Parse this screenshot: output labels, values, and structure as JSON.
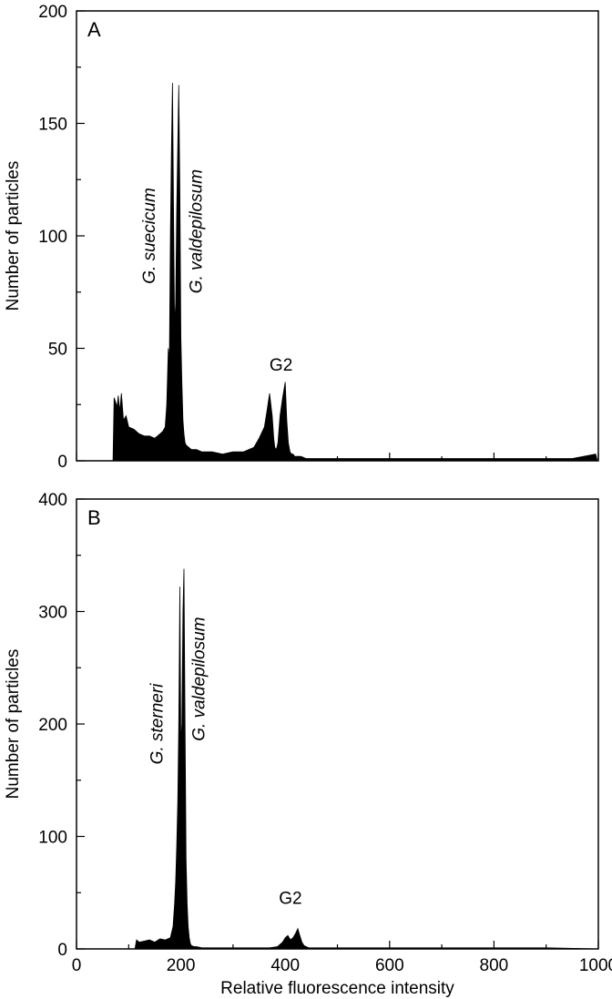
{
  "chart_data": [
    {
      "type": "area",
      "panel_label": "A",
      "xlabel": "",
      "ylabel": "Number of particles",
      "xlim": [
        0,
        1000
      ],
      "ylim": [
        0,
        200
      ],
      "xticks": [
        0,
        200,
        400,
        600,
        800,
        1000
      ],
      "yticks": [
        0,
        50,
        100,
        150,
        200
      ],
      "ytick_labels": [
        "0",
        "50",
        "100",
        "150",
        "200"
      ],
      "show_xtick_labels": false,
      "grid": false,
      "color": "#000000",
      "series": [
        {
          "x": [
            70,
            72,
            75,
            78,
            80,
            83,
            86,
            90,
            95,
            100,
            110,
            120,
            130,
            140,
            150,
            160,
            165,
            170,
            173,
            176,
            178,
            180,
            182,
            184,
            186,
            188,
            190,
            192,
            194,
            196,
            198,
            200,
            202,
            204,
            206,
            208,
            210,
            215,
            220,
            230,
            240,
            260,
            280,
            300,
            320,
            340,
            350,
            360,
            365,
            370,
            375,
            378,
            380,
            383,
            386,
            390,
            395,
            400,
            403,
            406,
            409,
            412,
            415,
            418,
            422,
            430,
            440,
            460,
            480,
            500,
            550,
            600,
            650,
            700,
            750,
            800,
            850,
            900,
            950,
            995,
            998,
            1000
          ],
          "y": [
            0,
            28,
            26,
            24,
            29,
            22,
            30,
            18,
            20,
            15,
            14,
            12,
            11,
            11,
            10,
            12,
            13,
            15,
            25,
            50,
            45,
            100,
            140,
            168,
            110,
            60,
            70,
            110,
            140,
            167,
            120,
            55,
            35,
            18,
            12,
            8,
            7,
            6,
            5,
            5,
            4,
            4,
            3,
            4,
            4,
            6,
            10,
            15,
            22,
            30,
            20,
            10,
            6,
            5,
            8,
            20,
            28,
            35,
            18,
            8,
            4,
            3,
            3,
            2,
            2,
            2,
            1,
            1,
            1,
            1,
            1,
            1,
            1,
            1,
            1,
            1,
            1,
            1,
            1,
            3,
            0,
            0
          ]
        }
      ],
      "annotations": [
        {
          "text": "G. suecicum",
          "italic": true,
          "x": 150,
          "y": 100
        },
        {
          "text": "G. valdepilosum",
          "italic": true,
          "x": 240,
          "y": 102
        },
        {
          "text": "G2",
          "italic": false,
          "x": 392,
          "y": 40
        }
      ]
    },
    {
      "type": "area",
      "panel_label": "B",
      "xlabel": "Relative fluorescence intensity",
      "ylabel": "Number of particles",
      "xlim": [
        0,
        1000
      ],
      "ylim": [
        0,
        400
      ],
      "xticks": [
        0,
        200,
        400,
        600,
        800,
        1000
      ],
      "xtick_labels": [
        "0",
        "200",
        "400",
        "600",
        "800",
        "1000"
      ],
      "yticks": [
        0,
        100,
        200,
        300,
        400
      ],
      "ytick_labels": [
        "0",
        "100",
        "200",
        "300",
        "400"
      ],
      "show_xtick_labels": true,
      "grid": false,
      "color": "#000000",
      "series": [
        {
          "x": [
            112,
            115,
            120,
            130,
            140,
            150,
            160,
            170,
            180,
            185,
            188,
            190,
            192,
            194,
            196,
            198,
            200,
            202,
            204,
            206,
            208,
            210,
            212,
            214,
            216,
            218,
            220,
            225,
            230,
            240,
            260,
            300,
            340,
            370,
            385,
            390,
            395,
            400,
            405,
            410,
            415,
            420,
            424,
            428,
            432,
            436,
            440,
            445,
            450,
            470,
            500,
            550,
            600,
            650,
            700,
            800,
            900,
            1000
          ],
          "y": [
            0,
            8,
            6,
            7,
            8,
            6,
            9,
            8,
            10,
            20,
            40,
            60,
            90,
            130,
            200,
            322,
            180,
            200,
            300,
            338,
            200,
            80,
            40,
            20,
            10,
            5,
            3,
            2,
            2,
            1,
            1,
            1,
            1,
            1,
            2,
            4,
            6,
            10,
            12,
            8,
            10,
            14,
            18,
            12,
            6,
            3,
            2,
            1,
            1,
            1,
            1,
            1,
            1,
            1,
            1,
            1,
            1,
            0
          ]
        }
      ],
      "annotations": [
        {
          "text": "G. sterneri",
          "italic": true,
          "x": 165,
          "y": 200
        },
        {
          "text": "G. valdepilosum",
          "italic": true,
          "x": 245,
          "y": 240
        },
        {
          "text": "G2",
          "italic": false,
          "x": 410,
          "y": 40
        }
      ]
    }
  ]
}
